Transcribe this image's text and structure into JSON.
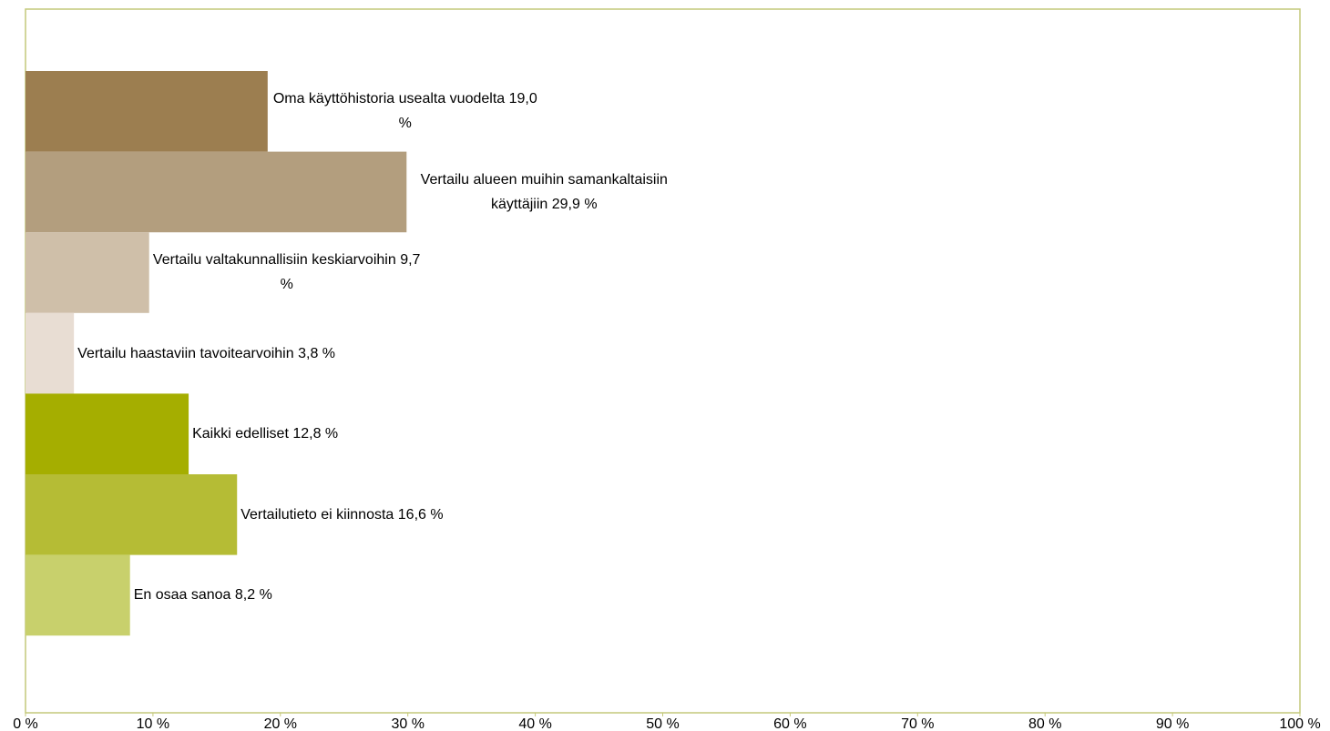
{
  "chart_data": {
    "type": "hbar",
    "categories": [
      "Oma käyttöhistoria usealta vuodelta",
      "Vertailu alueen muihin samankaltaisiin käyttäjiin",
      "Vertailu valtakunnallisiin keskiarvoihin",
      "Vertailu haastaviin tavoitearvoihin",
      "Kaikki edelliset",
      "Vertailutieto ei kiinnosta",
      "En osaa sanoa"
    ],
    "values": [
      19.0,
      29.9,
      9.7,
      3.8,
      12.8,
      16.6,
      8.2
    ],
    "value_labels": [
      "19,0 %",
      "29,9 %",
      "9,7 %",
      "3,8 %",
      "12,8 %",
      "16,6 %",
      "8,2 %"
    ],
    "colors": [
      "#9c7e50",
      "#b39e7e",
      "#cfbfa9",
      "#e8ddd3",
      "#a5ae00",
      "#b5bc35",
      "#c8d06c"
    ],
    "xlim": [
      0,
      100
    ],
    "xticks": [
      {
        "value": 0,
        "label": "0 %"
      },
      {
        "value": 10,
        "label": "10 %"
      },
      {
        "value": 20,
        "label": "20 %"
      },
      {
        "value": 30,
        "label": "30 %"
      },
      {
        "value": 40,
        "label": "40 %"
      },
      {
        "value": 50,
        "label": "50 %"
      },
      {
        "value": 60,
        "label": "60 %"
      },
      {
        "value": 70,
        "label": "70 %"
      },
      {
        "value": 80,
        "label": "80 %"
      },
      {
        "value": 90,
        "label": "90 %"
      },
      {
        "value": 100,
        "label": "100 %"
      }
    ],
    "grid": false
  }
}
